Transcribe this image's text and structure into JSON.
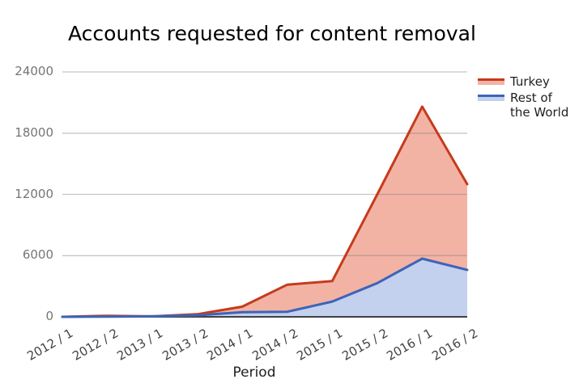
{
  "title": "Accounts requested for content removal",
  "x_axis_title": "Period",
  "background_color": "#ffffff",
  "axis": {
    "gridline_color": "#d9d9d9",
    "baseline_color": "#424242",
    "y_label_color": "#757575",
    "x_label_color": "#434343"
  },
  "chart_data": {
    "type": "area",
    "title": "Accounts requested for content removal",
    "xlabel": "Period",
    "ylabel": "",
    "ylim": [
      0,
      24000
    ],
    "y_ticks": [
      0,
      6000,
      12000,
      18000,
      24000
    ],
    "grid": true,
    "legend_position": "right",
    "categories": [
      "2012 / 1",
      "2012 / 2",
      "2013 / 1",
      "2013 / 2",
      "2014 / 1",
      "2014 / 2",
      "2015 / 1",
      "2015 / 2",
      "2016 / 1",
      "2016 / 2"
    ],
    "series": [
      {
        "id": "turkey",
        "name": "Turkey",
        "line_color": "#c63a1d",
        "fill_color": "#f2b3a4",
        "values": [
          0,
          100,
          50,
          250,
          1000,
          3150,
          3500,
          12000,
          20600,
          13000
        ]
      },
      {
        "id": "rest-of-the-world",
        "name": "Rest of the World",
        "line_color": "#3c64b8",
        "fill_color": "#c3d0ee",
        "values": [
          0,
          20,
          50,
          150,
          450,
          500,
          1500,
          3300,
          5700,
          4600
        ]
      }
    ]
  }
}
